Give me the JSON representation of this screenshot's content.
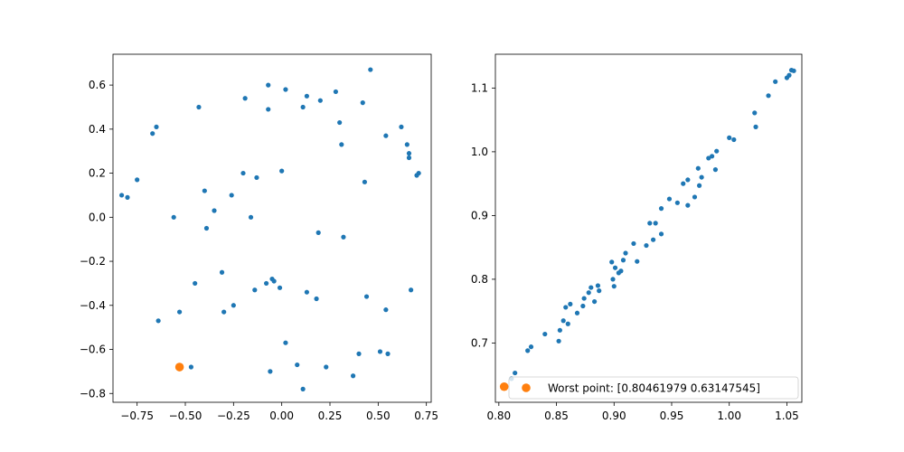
{
  "colors": {
    "series": "#1f77b4",
    "highlight": "#ff7f0e",
    "axis": "#000000"
  },
  "chart_data": [
    {
      "type": "scatter",
      "title": "",
      "xlabel": "",
      "ylabel": "",
      "xlim": [
        -0.875,
        0.775
      ],
      "ylim": [
        -0.84,
        0.74
      ],
      "xticks": [
        -0.75,
        -0.5,
        -0.25,
        0.0,
        0.25,
        0.5,
        0.75
      ],
      "xtick_labels": [
        "−0.75",
        "−0.50",
        "−0.25",
        "0.00",
        "0.25",
        "0.50",
        "0.75"
      ],
      "yticks": [
        -0.8,
        -0.6,
        -0.4,
        -0.2,
        0.0,
        0.2,
        0.4,
        0.6
      ],
      "ytick_labels": [
        "−0.8",
        "−0.6",
        "−0.4",
        "−0.2",
        "0.0",
        "0.2",
        "0.4",
        "0.6"
      ],
      "grid": false,
      "series": [
        {
          "color": "#1f77b4",
          "marker": "small-dot",
          "points": [
            [
              -0.83,
              0.1
            ],
            [
              -0.8,
              0.09
            ],
            [
              -0.75,
              0.17
            ],
            [
              -0.67,
              0.38
            ],
            [
              -0.65,
              0.41
            ],
            [
              -0.64,
              -0.47
            ],
            [
              -0.56,
              0.0
            ],
            [
              -0.53,
              -0.43
            ],
            [
              -0.47,
              -0.68
            ],
            [
              -0.45,
              -0.3
            ],
            [
              -0.43,
              0.5
            ],
            [
              -0.4,
              0.12
            ],
            [
              -0.39,
              -0.05
            ],
            [
              -0.35,
              0.03
            ],
            [
              -0.31,
              -0.25
            ],
            [
              -0.3,
              -0.43
            ],
            [
              -0.26,
              0.1
            ],
            [
              -0.25,
              -0.4
            ],
            [
              -0.2,
              0.2
            ],
            [
              -0.19,
              0.54
            ],
            [
              -0.16,
              0.0
            ],
            [
              -0.14,
              -0.33
            ],
            [
              -0.13,
              0.18
            ],
            [
              -0.08,
              -0.3
            ],
            [
              -0.07,
              0.6
            ],
            [
              -0.07,
              0.49
            ],
            [
              -0.06,
              -0.7
            ],
            [
              -0.05,
              -0.28
            ],
            [
              -0.04,
              -0.29
            ],
            [
              -0.01,
              -0.32
            ],
            [
              0.0,
              0.21
            ],
            [
              0.02,
              0.58
            ],
            [
              0.02,
              -0.57
            ],
            [
              0.08,
              -0.67
            ],
            [
              0.11,
              0.5
            ],
            [
              0.11,
              -0.78
            ],
            [
              0.13,
              0.55
            ],
            [
              0.13,
              -0.34
            ],
            [
              0.18,
              -0.37
            ],
            [
              0.19,
              -0.07
            ],
            [
              0.2,
              0.53
            ],
            [
              0.23,
              -0.68
            ],
            [
              0.28,
              0.57
            ],
            [
              0.3,
              0.43
            ],
            [
              0.31,
              0.33
            ],
            [
              0.32,
              -0.09
            ],
            [
              0.37,
              -0.72
            ],
            [
              0.4,
              -0.62
            ],
            [
              0.42,
              0.52
            ],
            [
              0.43,
              0.16
            ],
            [
              0.44,
              -0.36
            ],
            [
              0.46,
              0.67
            ],
            [
              0.51,
              -0.61
            ],
            [
              0.54,
              0.37
            ],
            [
              0.54,
              -0.42
            ],
            [
              0.55,
              -0.62
            ],
            [
              0.62,
              0.41
            ],
            [
              0.65,
              0.33
            ],
            [
              0.66,
              0.29
            ],
            [
              0.66,
              0.27
            ],
            [
              0.67,
              -0.33
            ],
            [
              0.7,
              0.19
            ],
            [
              0.71,
              0.2
            ]
          ]
        },
        {
          "color": "#ff7f0e",
          "marker": "large-dot",
          "points": [
            [
              -0.53,
              -0.68
            ]
          ]
        }
      ]
    },
    {
      "type": "scatter",
      "title": "",
      "xlabel": "",
      "ylabel": "",
      "xlim": [
        0.797,
        1.063
      ],
      "ylim": [
        0.607,
        1.153
      ],
      "xticks": [
        0.8,
        0.85,
        0.9,
        0.95,
        1.0,
        1.05
      ],
      "xtick_labels": [
        "0.80",
        "0.85",
        "0.90",
        "0.95",
        "1.00",
        "1.05"
      ],
      "yticks": [
        0.7,
        0.8,
        0.9,
        1.0,
        1.1
      ],
      "ytick_labels": [
        "0.7",
        "0.8",
        "0.9",
        "1.0",
        "1.1"
      ],
      "grid": false,
      "legend_position": "lower-right",
      "legend": [
        {
          "label": "Worst point: [0.80461979 0.63147545]",
          "color": "#ff7f0e"
        }
      ],
      "series": [
        {
          "color": "#1f77b4",
          "marker": "small-dot",
          "points": [
            [
              0.811,
              0.644
            ],
            [
              0.814,
              0.653
            ],
            [
              0.825,
              0.688
            ],
            [
              0.828,
              0.694
            ],
            [
              0.84,
              0.714
            ],
            [
              0.852,
              0.703
            ],
            [
              0.853,
              0.72
            ],
            [
              0.856,
              0.735
            ],
            [
              0.858,
              0.756
            ],
            [
              0.86,
              0.73
            ],
            [
              0.862,
              0.761
            ],
            [
              0.868,
              0.747
            ],
            [
              0.873,
              0.758
            ],
            [
              0.874,
              0.77
            ],
            [
              0.878,
              0.779
            ],
            [
              0.88,
              0.787
            ],
            [
              0.883,
              0.765
            ],
            [
              0.886,
              0.79
            ],
            [
              0.887,
              0.782
            ],
            [
              0.898,
              0.827
            ],
            [
              0.899,
              0.8
            ],
            [
              0.9,
              0.789
            ],
            [
              0.901,
              0.818
            ],
            [
              0.904,
              0.81
            ],
            [
              0.906,
              0.813
            ],
            [
              0.908,
              0.83
            ],
            [
              0.91,
              0.841
            ],
            [
              0.917,
              0.856
            ],
            [
              0.92,
              0.828
            ],
            [
              0.928,
              0.853
            ],
            [
              0.931,
              0.888
            ],
            [
              0.934,
              0.862
            ],
            [
              0.936,
              0.888
            ],
            [
              0.941,
              0.871
            ],
            [
              0.941,
              0.911
            ],
            [
              0.948,
              0.926
            ],
            [
              0.955,
              0.92
            ],
            [
              0.96,
              0.95
            ],
            [
              0.964,
              0.916
            ],
            [
              0.964,
              0.956
            ],
            [
              0.97,
              0.929
            ],
            [
              0.973,
              0.974
            ],
            [
              0.974,
              0.947
            ],
            [
              0.976,
              0.96
            ],
            [
              0.982,
              0.99
            ],
            [
              0.985,
              0.993
            ],
            [
              0.988,
              0.972
            ],
            [
              0.989,
              1.001
            ],
            [
              1.0,
              1.022
            ],
            [
              1.004,
              1.019
            ],
            [
              1.022,
              1.061
            ],
            [
              1.023,
              1.039
            ],
            [
              1.034,
              1.088
            ],
            [
              1.04,
              1.11
            ],
            [
              1.05,
              1.116
            ],
            [
              1.052,
              1.12
            ],
            [
              1.054,
              1.128
            ],
            [
              1.056,
              1.127
            ]
          ]
        },
        {
          "color": "#ff7f0e",
          "marker": "large-dot",
          "points": [
            [
              0.80461979,
              0.63147545
            ]
          ]
        }
      ]
    }
  ]
}
